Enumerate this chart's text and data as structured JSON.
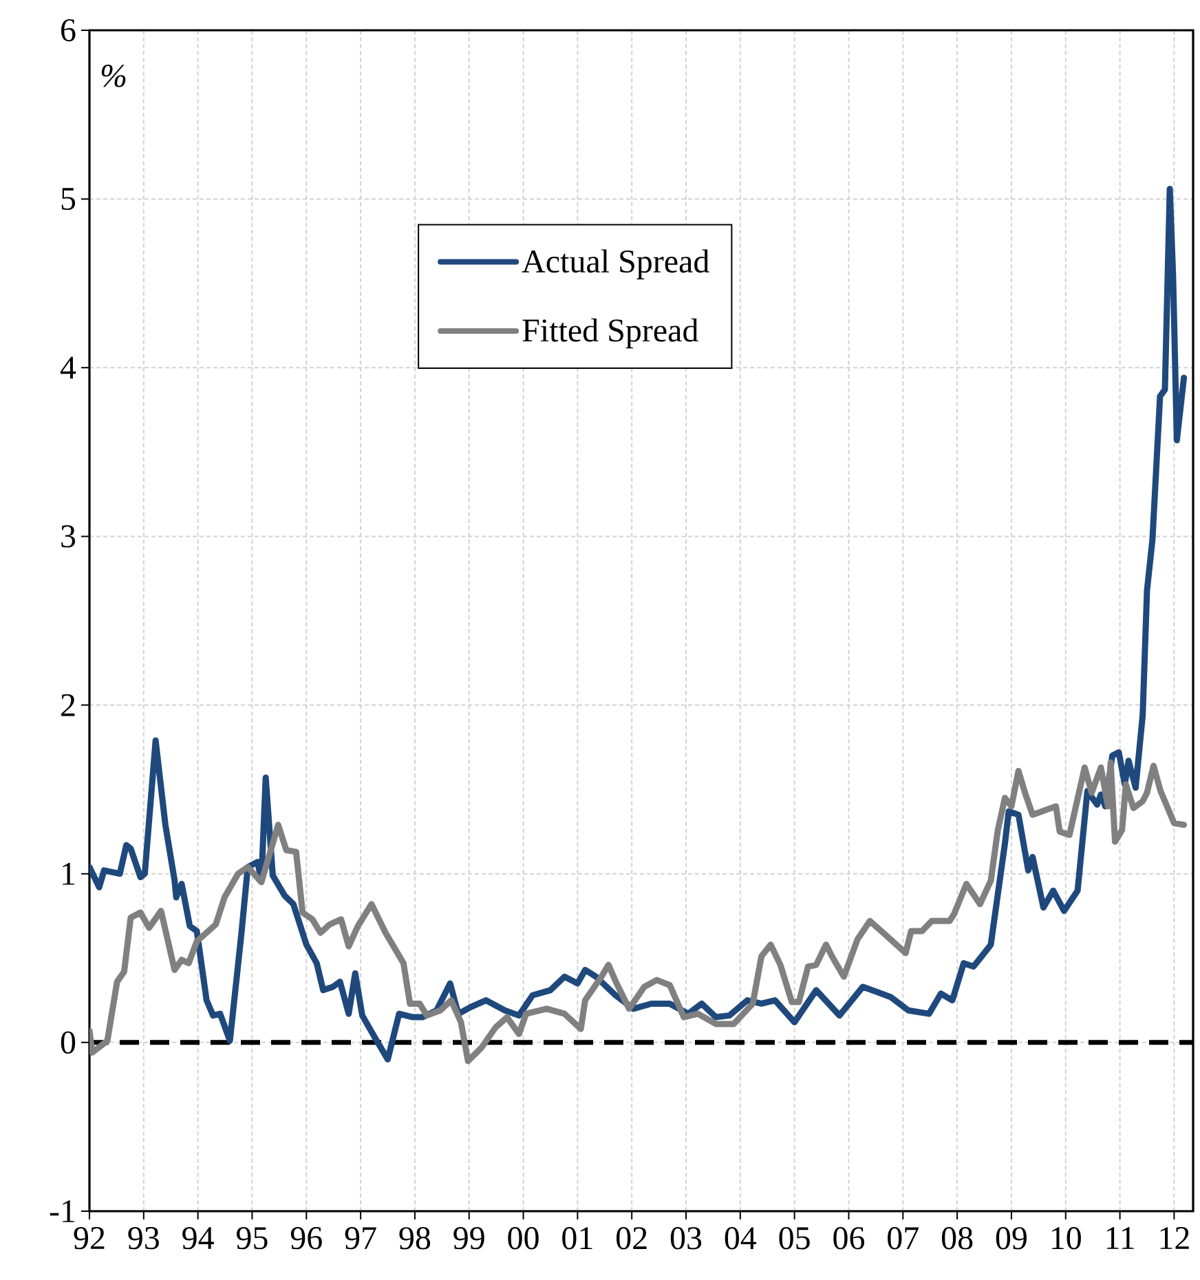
{
  "chart_data": {
    "type": "line",
    "ylabel": "%",
    "xlim": [
      1992,
      2012.35
    ],
    "ylim": [
      -1,
      6
    ],
    "xticks": [
      {
        "value": 1992,
        "label": "92"
      },
      {
        "value": 1993,
        "label": "93"
      },
      {
        "value": 1994,
        "label": "94"
      },
      {
        "value": 1995,
        "label": "95"
      },
      {
        "value": 1996,
        "label": "96"
      },
      {
        "value": 1997,
        "label": "97"
      },
      {
        "value": 1998,
        "label": "98"
      },
      {
        "value": 1999,
        "label": "99"
      },
      {
        "value": 2000,
        "label": "00"
      },
      {
        "value": 2001,
        "label": "01"
      },
      {
        "value": 2002,
        "label": "02"
      },
      {
        "value": 2003,
        "label": "03"
      },
      {
        "value": 2004,
        "label": "04"
      },
      {
        "value": 2005,
        "label": "05"
      },
      {
        "value": 2006,
        "label": "06"
      },
      {
        "value": 2007,
        "label": "07"
      },
      {
        "value": 2008,
        "label": "08"
      },
      {
        "value": 2009,
        "label": "09"
      },
      {
        "value": 2010,
        "label": "10"
      },
      {
        "value": 2011,
        "label": "11"
      },
      {
        "value": 2012,
        "label": "12"
      }
    ],
    "yticks": [
      -1,
      0,
      1,
      2,
      3,
      4,
      5,
      6
    ],
    "grid": true,
    "legend": "top",
    "ref_lines": [
      {
        "axis": "y",
        "value": 0,
        "color": "#000000",
        "line_style": "dashed"
      }
    ],
    "series": [
      {
        "name": "Actual Spread",
        "color": "#1f497d",
        "x": [
          1992.0,
          1992.18,
          1992.27,
          1992.56,
          1992.68,
          1992.76,
          1992.94,
          1993.02,
          1993.22,
          1993.4,
          1993.57,
          1993.6,
          1993.7,
          1993.85,
          1993.98,
          1994.16,
          1994.28,
          1994.41,
          1994.59,
          1994.8,
          1994.92,
          1995.1,
          1995.17,
          1995.25,
          1995.38,
          1995.6,
          1995.76,
          1996.0,
          1996.19,
          1996.31,
          1996.49,
          1996.62,
          1996.78,
          1996.9,
          1997.03,
          1997.28,
          1997.5,
          1997.71,
          1997.96,
          1998.14,
          1998.4,
          1998.65,
          1998.8,
          1999.03,
          1999.31,
          1999.66,
          1999.92,
          2000.17,
          2000.5,
          2000.76,
          2001.0,
          2001.14,
          2001.34,
          2001.7,
          2002.03,
          2002.36,
          2002.7,
          2003.04,
          2003.29,
          2003.55,
          2003.8,
          2004.13,
          2004.39,
          2004.64,
          2005.0,
          2005.4,
          2005.83,
          2006.26,
          2006.77,
          2007.1,
          2007.48,
          2007.7,
          2007.91,
          2008.12,
          2008.3,
          2008.45,
          2008.62,
          2008.88,
          2008.95,
          2009.13,
          2009.31,
          2009.39,
          2009.59,
          2009.77,
          2009.97,
          2010.22,
          2010.4,
          2010.58,
          2010.65,
          2010.73,
          2010.86,
          2010.98,
          2011.09,
          2011.16,
          2011.29,
          2011.42,
          2011.5,
          2011.6,
          2011.74,
          2011.83,
          2011.92,
          2011.98,
          2012.05,
          2012.18
        ],
        "values": [
          1.04,
          0.92,
          1.02,
          1.0,
          1.17,
          1.15,
          0.98,
          1.0,
          1.79,
          1.29,
          0.96,
          0.86,
          0.94,
          0.69,
          0.66,
          0.25,
          0.16,
          0.17,
          0.01,
          0.64,
          1.04,
          1.07,
          0.96,
          1.57,
          0.99,
          0.87,
          0.82,
          0.58,
          0.47,
          0.31,
          0.33,
          0.36,
          0.17,
          0.41,
          0.16,
          0.02,
          -0.1,
          0.17,
          0.15,
          0.15,
          0.19,
          0.35,
          0.17,
          0.21,
          0.25,
          0.19,
          0.16,
          0.28,
          0.31,
          0.39,
          0.35,
          0.43,
          0.39,
          0.28,
          0.2,
          0.23,
          0.23,
          0.17,
          0.23,
          0.15,
          0.16,
          0.25,
          0.23,
          0.25,
          0.12,
          0.31,
          0.16,
          0.33,
          0.27,
          0.19,
          0.17,
          0.29,
          0.25,
          0.47,
          0.45,
          0.51,
          0.58,
          1.18,
          1.37,
          1.35,
          1.02,
          1.1,
          0.8,
          0.9,
          0.78,
          0.9,
          1.49,
          1.41,
          1.47,
          1.4,
          1.7,
          1.72,
          1.53,
          1.67,
          1.51,
          1.94,
          2.68,
          2.98,
          3.83,
          3.87,
          5.06,
          4.55,
          3.57,
          3.94
        ]
      },
      {
        "name": "Fitted Spread",
        "color": "#808080",
        "x": [
          1992.0,
          1992.05,
          1992.33,
          1992.51,
          1992.64,
          1992.76,
          1992.94,
          1993.1,
          1993.32,
          1993.57,
          1993.7,
          1993.83,
          1993.98,
          1994.33,
          1994.49,
          1994.74,
          1994.92,
          1995.17,
          1995.48,
          1995.63,
          1995.81,
          1995.93,
          1996.11,
          1996.26,
          1996.43,
          1996.64,
          1996.78,
          1996.95,
          1997.2,
          1997.46,
          1997.79,
          1997.91,
          1998.09,
          1998.22,
          1998.47,
          1998.67,
          1998.85,
          1998.98,
          1999.23,
          1999.49,
          1999.7,
          1999.92,
          2000.05,
          2000.43,
          2000.76,
          2001.06,
          2001.14,
          2001.44,
          2001.57,
          2001.72,
          2001.95,
          2002.23,
          2002.46,
          2002.7,
          2002.96,
          2003.22,
          2003.55,
          2003.88,
          2004.23,
          2004.39,
          2004.56,
          2004.74,
          2004.95,
          2005.08,
          2005.25,
          2005.4,
          2005.58,
          2005.71,
          2005.91,
          2006.16,
          2006.39,
          2006.67,
          2007.05,
          2007.15,
          2007.35,
          2007.53,
          2007.86,
          2007.94,
          2008.17,
          2008.42,
          2008.62,
          2008.75,
          2008.88,
          2009.0,
          2009.13,
          2009.25,
          2009.39,
          2009.82,
          2009.89,
          2010.07,
          2010.35,
          2010.48,
          2010.65,
          2010.78,
          2010.83,
          2010.91,
          2011.04,
          2011.11,
          2011.25,
          2011.42,
          2011.5,
          2011.62,
          2011.75,
          2012.0,
          2012.18
        ],
        "values": [
          0.07,
          -0.06,
          0.01,
          0.36,
          0.42,
          0.74,
          0.77,
          0.68,
          0.78,
          0.43,
          0.49,
          0.47,
          0.6,
          0.7,
          0.86,
          1.0,
          1.04,
          0.95,
          1.29,
          1.14,
          1.13,
          0.77,
          0.73,
          0.65,
          0.7,
          0.73,
          0.57,
          0.69,
          0.82,
          0.65,
          0.47,
          0.23,
          0.23,
          0.16,
          0.19,
          0.25,
          0.12,
          -0.11,
          -0.03,
          0.09,
          0.15,
          0.05,
          0.17,
          0.2,
          0.17,
          0.08,
          0.25,
          0.39,
          0.46,
          0.35,
          0.2,
          0.33,
          0.37,
          0.34,
          0.15,
          0.17,
          0.11,
          0.11,
          0.23,
          0.51,
          0.58,
          0.46,
          0.24,
          0.24,
          0.45,
          0.46,
          0.58,
          0.5,
          0.39,
          0.61,
          0.72,
          0.64,
          0.53,
          0.66,
          0.66,
          0.72,
          0.72,
          0.76,
          0.94,
          0.82,
          0.96,
          1.26,
          1.45,
          1.4,
          1.61,
          1.48,
          1.35,
          1.4,
          1.25,
          1.23,
          1.63,
          1.48,
          1.63,
          1.4,
          1.66,
          1.19,
          1.26,
          1.53,
          1.39,
          1.43,
          1.48,
          1.64,
          1.49,
          1.3,
          1.29
        ]
      }
    ]
  }
}
